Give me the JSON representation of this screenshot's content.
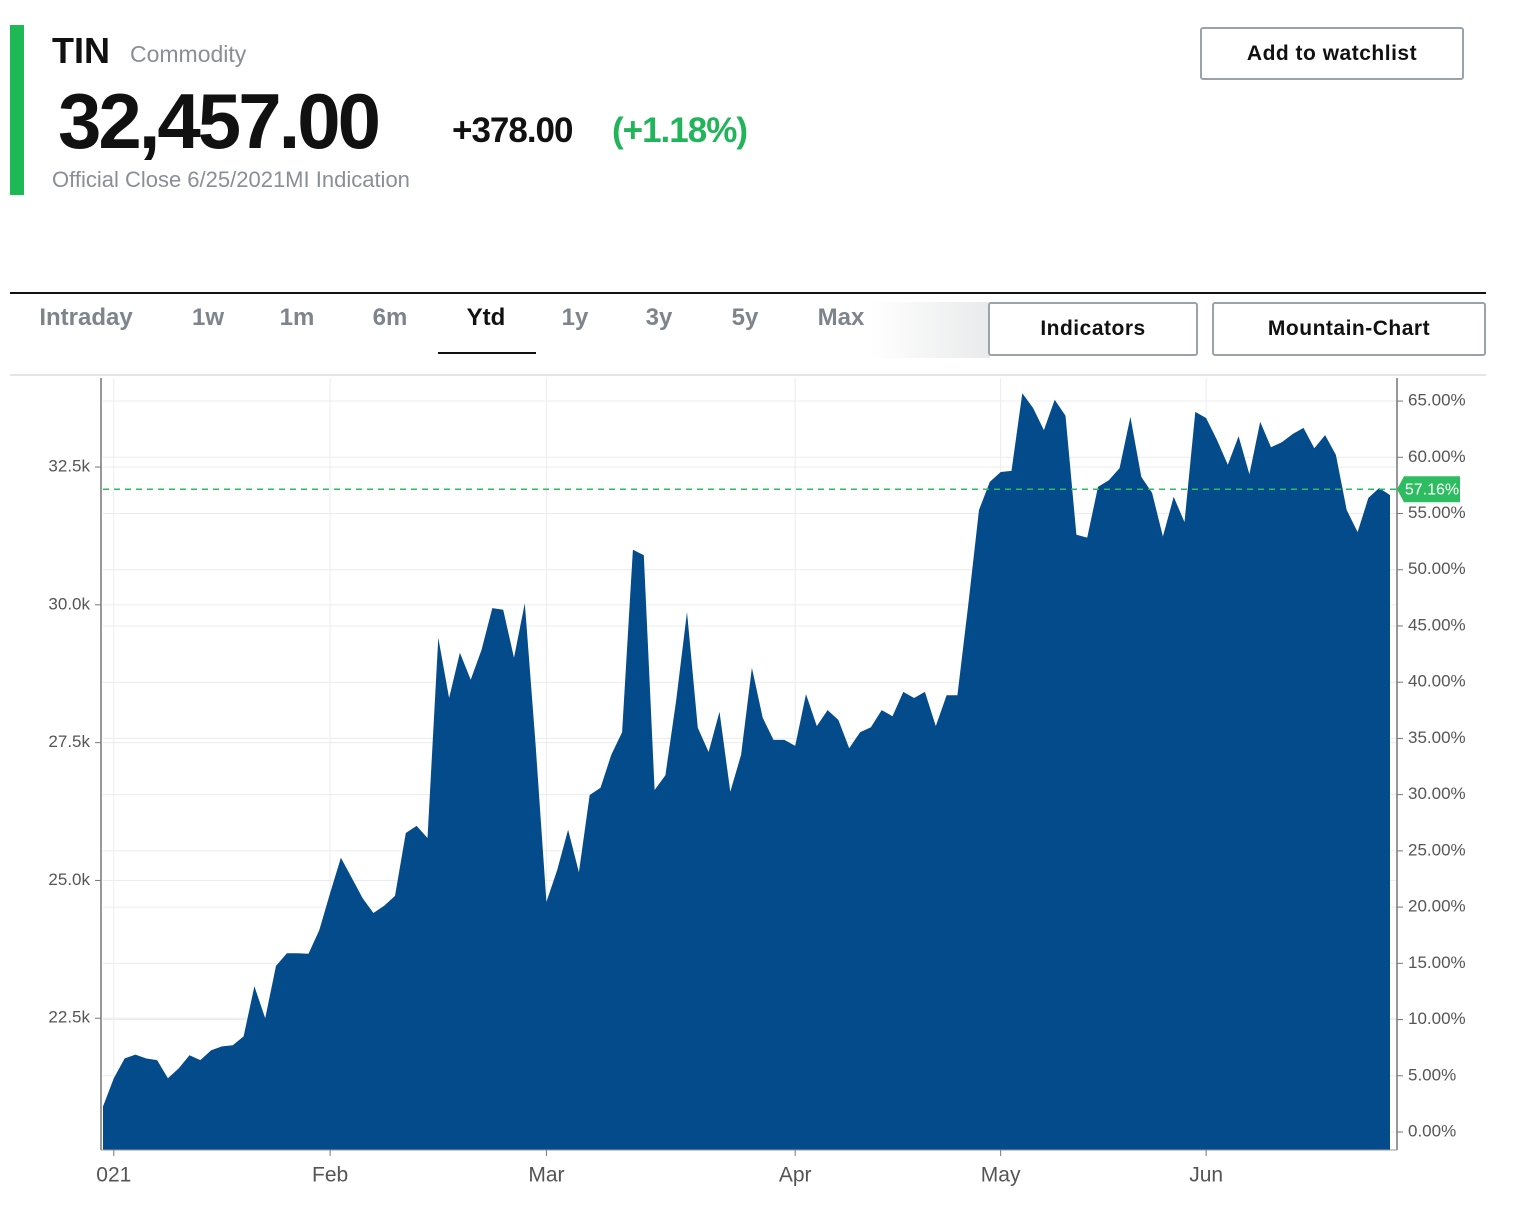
{
  "header": {
    "symbol": "TIN",
    "asset_class": "Commodity",
    "price": "32,457.00",
    "change": "+378.00",
    "change_percent": "(+1.18%)",
    "status": "Official Close 6/25/2021MI Indication",
    "watchlist_button": "Add to watchlist"
  },
  "tabs": {
    "items": [
      "Intraday",
      "1w",
      "1m",
      "6m",
      "Ytd",
      "1y",
      "3y",
      "5y",
      "Max"
    ],
    "active": "Ytd"
  },
  "toolbar": {
    "indicators": "Indicators",
    "chart_type": "Mountain-Chart"
  },
  "chart_data": {
    "type": "area",
    "color": "#034b8b",
    "grid": true,
    "categories": [
      null,
      "021",
      null,
      null,
      null,
      null,
      null,
      null,
      null,
      null,
      null,
      null,
      null,
      null,
      null,
      null,
      null,
      null,
      null,
      null,
      null,
      "Feb",
      null,
      null,
      null,
      null,
      null,
      null,
      null,
      null,
      null,
      null,
      null,
      null,
      null,
      null,
      null,
      null,
      null,
      null,
      null,
      "Mar",
      null,
      null,
      null,
      null,
      null,
      null,
      null,
      null,
      null,
      null,
      null,
      null,
      null,
      null,
      null,
      null,
      null,
      null,
      null,
      null,
      null,
      null,
      "Apr",
      null,
      null,
      null,
      null,
      null,
      null,
      null,
      null,
      null,
      null,
      null,
      null,
      null,
      null,
      null,
      null,
      null,
      null,
      "May",
      null,
      null,
      null,
      null,
      null,
      null,
      null,
      null,
      null,
      null,
      null,
      null,
      null,
      null,
      null,
      null,
      null,
      null,
      "Jun",
      null,
      null,
      null,
      null,
      null,
      null,
      null,
      null,
      null,
      null,
      null,
      null,
      null,
      null,
      null,
      null,
      null
    ],
    "values": [
      20900,
      21410,
      21770,
      21840,
      21770,
      21740,
      21410,
      21590,
      21830,
      21740,
      21920,
      21990,
      22010,
      22170,
      23080,
      22500,
      23450,
      23680,
      23680,
      23670,
      24100,
      24770,
      25410,
      25050,
      24680,
      24410,
      24540,
      24720,
      25860,
      25990,
      25770,
      29400,
      28310,
      29130,
      28640,
      29180,
      29940,
      29910,
      29040,
      30030,
      27460,
      24610,
      25190,
      25920,
      25150,
      26550,
      26680,
      27280,
      27690,
      31000,
      30900,
      26640,
      26910,
      28270,
      29870,
      27770,
      27330,
      28060,
      26610,
      27280,
      28860,
      27950,
      27550,
      27550,
      27440,
      28380,
      27800,
      28090,
      27910,
      27400,
      27690,
      27780,
      28090,
      27980,
      28420,
      28310,
      28420,
      27800,
      28360,
      28360,
      29990,
      31720,
      32230,
      32410,
      32430,
      33840,
      33570,
      33170,
      33720,
      33430,
      31270,
      31220,
      32140,
      32260,
      32480,
      33410,
      32320,
      32030,
      31240,
      31960,
      31500,
      33500,
      33390,
      32990,
      32540,
      33060,
      32370,
      33320,
      32860,
      32950,
      33100,
      33210,
      32840,
      33080,
      32720,
      31720,
      31320,
      31940,
      32120,
      31990
    ],
    "ylim": [
      20110,
      34115
    ],
    "yticks": [
      {
        "value": 22500,
        "label": "22.5k"
      },
      {
        "value": 25000,
        "label": "25.0k"
      },
      {
        "value": 27500,
        "label": "27.5k"
      },
      {
        "value": 30000,
        "label": "30.0k"
      },
      {
        "value": 32500,
        "label": "32.5k"
      }
    ],
    "y2lim": [
      -1.6,
      67.05
    ],
    "y2ticks": [
      {
        "value": 0,
        "label": "0.00%"
      },
      {
        "value": 5,
        "label": "5.00%"
      },
      {
        "value": 10,
        "label": "10.00%"
      },
      {
        "value": 15,
        "label": "15.00%"
      },
      {
        "value": 20,
        "label": "20.00%"
      },
      {
        "value": 25,
        "label": "25.00%"
      },
      {
        "value": 30,
        "label": "30.00%"
      },
      {
        "value": 35,
        "label": "35.00%"
      },
      {
        "value": 40,
        "label": "40.00%"
      },
      {
        "value": 45,
        "label": "45.00%"
      },
      {
        "value": 50,
        "label": "50.00%"
      },
      {
        "value": 55,
        "label": "55.00%"
      },
      {
        "value": 60,
        "label": "60.00%"
      },
      {
        "value": 65,
        "label": "65.00%"
      }
    ],
    "reference": {
      "value": 57.16,
      "label": "57.16%",
      "axis": "y2",
      "color": "#2dbd60"
    }
  }
}
